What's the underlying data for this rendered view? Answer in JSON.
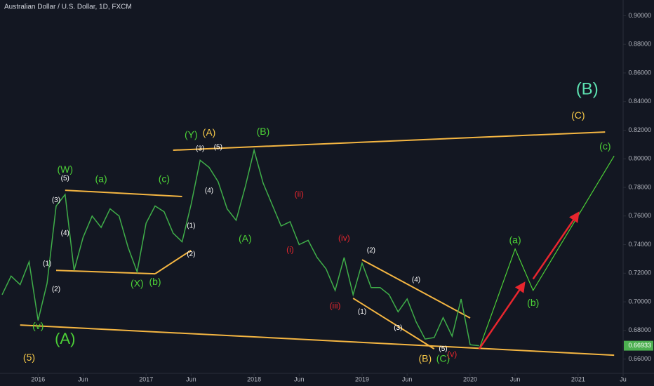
{
  "chart_data": {
    "type": "line",
    "title": "Australian Dollar / U.S. Dollar, 1D, FXCM",
    "xlim": [
      "2015-09",
      "2021-06"
    ],
    "ylim": [
      0.65,
      0.91
    ],
    "xticks": [
      {
        "value": "2016-01",
        "label": "2016"
      },
      {
        "value": "2016-06",
        "label": "Jun"
      },
      {
        "value": "2017-01",
        "label": "2017"
      },
      {
        "value": "2017-06",
        "label": "Jun"
      },
      {
        "value": "2018-01",
        "label": "2018"
      },
      {
        "value": "2018-06",
        "label": "Jun"
      },
      {
        "value": "2019-01",
        "label": "2019"
      },
      {
        "value": "2019-06",
        "label": "Jun"
      },
      {
        "value": "2020-01",
        "label": "2020"
      },
      {
        "value": "2020-06",
        "label": "Jun"
      },
      {
        "value": "2021-01",
        "label": "2021"
      },
      {
        "value": "2021-06",
        "label": "Ju"
      }
    ],
    "yticks": [
      {
        "value": 0.66,
        "label": "0.66000"
      },
      {
        "value": 0.68,
        "label": "0.68000"
      },
      {
        "value": 0.7,
        "label": "0.70000"
      },
      {
        "value": 0.72,
        "label": "0.72000"
      },
      {
        "value": 0.74,
        "label": "0.74000"
      },
      {
        "value": 0.76,
        "label": "0.76000"
      },
      {
        "value": 0.78,
        "label": "0.78000"
      },
      {
        "value": 0.8,
        "label": "0.80000"
      },
      {
        "value": 0.82,
        "label": "0.82000"
      },
      {
        "value": 0.84,
        "label": "0.84000"
      },
      {
        "value": 0.86,
        "label": "0.86000"
      },
      {
        "value": 0.88,
        "label": "0.88000"
      },
      {
        "value": 0.9,
        "label": "0.90000"
      }
    ],
    "last_price": 0.66933,
    "last_price_color": "#4caf50",
    "series": [
      {
        "color": "#3fae49",
        "x": [
          "2015-09",
          "2015-10",
          "2015-11",
          "2015-12",
          "2016-01",
          "2016-02",
          "2016-03",
          "2016-04",
          "2016-05",
          "2016-06",
          "2016-07",
          "2016-08",
          "2016-09",
          "2016-10",
          "2016-11",
          "2016-12",
          "2017-01",
          "2017-02",
          "2017-03",
          "2017-04",
          "2017-05",
          "2017-06",
          "2017-07",
          "2017-08",
          "2017-09",
          "2017-10",
          "2017-11",
          "2017-12",
          "2018-01",
          "2018-02",
          "2018-03",
          "2018-04",
          "2018-05",
          "2018-06",
          "2018-07",
          "2018-08",
          "2018-09",
          "2018-10",
          "2018-11",
          "2018-12",
          "2019-01",
          "2019-02",
          "2019-03",
          "2019-04",
          "2019-05",
          "2019-06",
          "2019-07",
          "2019-08",
          "2019-09",
          "2019-10",
          "2019-11",
          "2019-12",
          "2020-01",
          "2020-02"
        ],
        "values": [
          0.705,
          0.718,
          0.712,
          0.728,
          0.687,
          0.713,
          0.767,
          0.775,
          0.722,
          0.745,
          0.76,
          0.752,
          0.765,
          0.76,
          0.738,
          0.721,
          0.755,
          0.767,
          0.763,
          0.748,
          0.742,
          0.768,
          0.799,
          0.794,
          0.784,
          0.765,
          0.757,
          0.78,
          0.806,
          0.783,
          0.768,
          0.753,
          0.756,
          0.74,
          0.743,
          0.731,
          0.723,
          0.708,
          0.731,
          0.705,
          0.727,
          0.71,
          0.71,
          0.705,
          0.693,
          0.702,
          0.686,
          0.674,
          0.675,
          0.689,
          0.676,
          0.702,
          0.67,
          0.66933
        ]
      }
    ],
    "trendlines": [
      {
        "color": "#f5b642",
        "x": [
          "2017-04",
          "2021-04"
        ],
        "y": [
          0.806,
          0.8187
        ]
      },
      {
        "color": "#f5b642",
        "x": [
          "2015-11",
          "2021-05"
        ],
        "y": [
          0.6838,
          0.6627
        ]
      },
      {
        "color": "#f5b642",
        "x": [
          "2016-04",
          "2017-05"
        ],
        "y": [
          0.778,
          0.7736
        ]
      },
      {
        "color": "#f5b642",
        "x": [
          "2016-03",
          "2017-02"
        ],
        "y": [
          0.722,
          0.7196
        ]
      },
      {
        "color": "#f5b642",
        "x": [
          "2017-02",
          "2017-06"
        ],
        "y": [
          0.7196,
          0.736
        ]
      },
      {
        "color": "#f5b642",
        "x": [
          "2019-01",
          "2020-01"
        ],
        "y": [
          0.7294,
          0.6887
        ]
      },
      {
        "color": "#f5b642",
        "x": [
          "2018-12",
          "2019-09"
        ],
        "y": [
          0.7025,
          0.6671
        ]
      }
    ],
    "projections": [
      {
        "color": "#4cd137",
        "arrow": false,
        "x": [
          "2020-02",
          "2020-06",
          "2020-08",
          "2021-05"
        ],
        "y": [
          0.667,
          0.737,
          0.708,
          0.802
        ]
      },
      {
        "color": "#e8262e",
        "arrow": true,
        "x": [
          "2020-02",
          "2020-07"
        ],
        "y": [
          0.667,
          0.713
        ]
      },
      {
        "color": "#e8262e",
        "arrow": true,
        "x": [
          "2020-08",
          "2021-01"
        ],
        "y": [
          0.716,
          0.762
        ]
      }
    ],
    "annotations": [
      {
        "color": "#ffffff",
        "items": [
          {
            "text": "(5)",
            "x": "2016-04",
            "y": 0.7863
          },
          {
            "text": "(3)",
            "x": "2016-03",
            "y": 0.7711
          },
          {
            "text": "(4)",
            "x": "2016-04",
            "y": 0.748
          },
          {
            "text": "(1)",
            "x": "2016-02",
            "y": 0.7265
          },
          {
            "text": "(2)",
            "x": "2016-03",
            "y": 0.7088
          },
          {
            "text": "(3)",
            "x": "2017-07",
            "y": 0.807
          },
          {
            "text": "(5)",
            "x": "2017-09",
            "y": 0.808
          },
          {
            "text": "(4)",
            "x": "2017-08",
            "y": 0.7775
          },
          {
            "text": "(1)",
            "x": "2017-06",
            "y": 0.753
          },
          {
            "text": "(2)",
            "x": "2017-06",
            "y": 0.7333
          },
          {
            "text": "(2)",
            "x": "2019-02",
            "y": 0.7358
          },
          {
            "text": "(4)",
            "x": "2019-07",
            "y": 0.7152
          },
          {
            "text": "(1)",
            "x": "2019-01",
            "y": 0.6931
          },
          {
            "text": "(3)",
            "x": "2019-05",
            "y": 0.6818
          },
          {
            "text": "(5)",
            "x": "2019-10",
            "y": 0.6671
          }
        ]
      },
      {
        "color": "#4cd137",
        "items": [
          {
            "text": "(v)",
            "x": "2016-01",
            "y": 0.6828
          },
          {
            "text": "(W)",
            "x": "2016-04",
            "y": 0.7922
          },
          {
            "text": "(a)",
            "x": "2016-08",
            "y": 0.7854
          },
          {
            "text": "(c)",
            "x": "2017-03",
            "y": 0.7854
          },
          {
            "text": "(X)",
            "x": "2016-12",
            "y": 0.7123
          },
          {
            "text": "(b)",
            "x": "2017-02",
            "y": 0.7137
          },
          {
            "text": "(Y)",
            "x": "2017-06",
            "y": 0.8163
          },
          {
            "text": "(B)",
            "x": "2018-02",
            "y": 0.8187
          },
          {
            "text": "(A)",
            "x": "2017-12",
            "y": 0.7437
          },
          {
            "text": "(C)",
            "x": "2019-10",
            "y": 0.6598
          },
          {
            "text": "(a)",
            "x": "2020-06",
            "y": 0.7427
          },
          {
            "text": "(b)",
            "x": "2020-08",
            "y": 0.699
          },
          {
            "text": "(c)",
            "x": "2021-04",
            "y": 0.8084
          }
        ]
      },
      {
        "color": "#f7c948",
        "items": [
          {
            "text": "(A)",
            "x": "2017-08",
            "y": 0.8178
          },
          {
            "text": "(B)",
            "x": "2019-08",
            "y": 0.6598
          },
          {
            "text": "(C)",
            "x": "2021-01",
            "y": 0.83
          },
          {
            "text": "(5)",
            "x": "2015-12",
            "y": 0.6607
          }
        ]
      },
      {
        "color": "#e8262e",
        "items": [
          {
            "text": "(ii)",
            "x": "2018-06",
            "y": 0.775
          },
          {
            "text": "(i)",
            "x": "2018-05",
            "y": 0.7363
          },
          {
            "text": "(iv)",
            "x": "2018-11",
            "y": 0.7442
          },
          {
            "text": "(iii)",
            "x": "2018-10",
            "y": 0.697
          },
          {
            "text": "(v)",
            "x": "2019-11",
            "y": 0.6632
          }
        ]
      },
      {
        "color": "#4cd137",
        "items": [
          {
            "text": "(A)",
            "x": "2016-04",
            "y": 0.6735
          }
        ]
      },
      {
        "color": "#5ce0b0",
        "items": [
          {
            "text": "(B)",
            "x": "2021-02",
            "y": 0.8482
          }
        ]
      }
    ]
  }
}
